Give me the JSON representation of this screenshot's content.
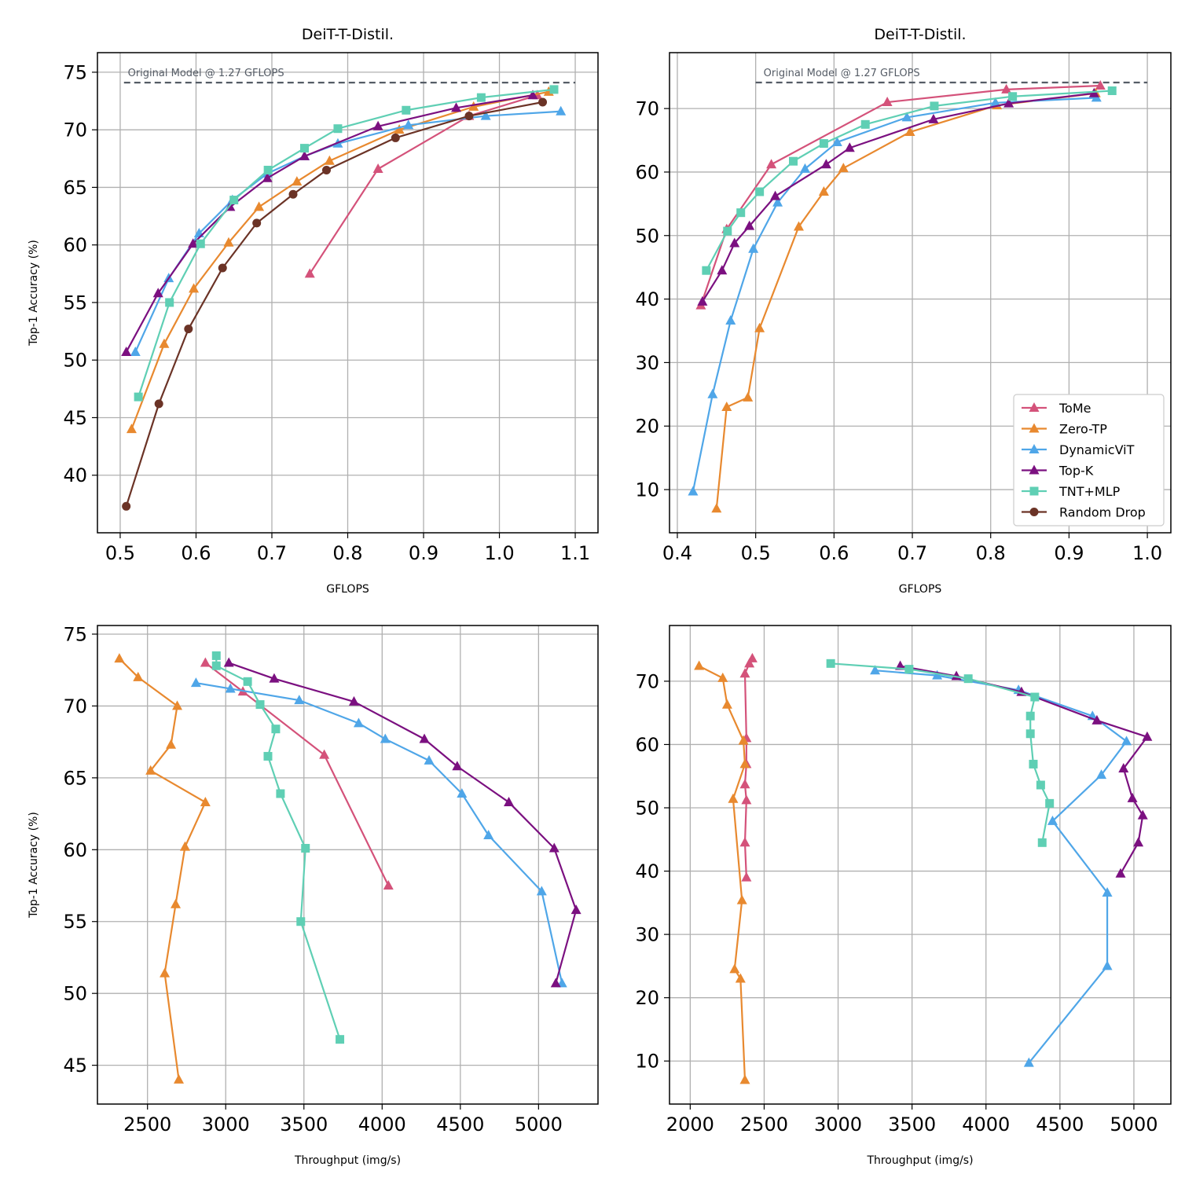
{
  "colors": {
    "ToMe": "#d4527a",
    "Zero-TP": "#e8892f",
    "DynamicViT": "#4fa6e8",
    "Top-K": "#7b1080",
    "TNT+MLP": "#5fcfb4",
    "Random Drop": "#6b3326",
    "grid": "#b0b0b0",
    "reference_line": "#555c66"
  },
  "legend": [
    {
      "name": "ToMe",
      "marker": "triangle"
    },
    {
      "name": "Zero-TP",
      "marker": "triangle"
    },
    {
      "name": "DynamicViT",
      "marker": "triangle"
    },
    {
      "name": "Top-K",
      "marker": "triangle"
    },
    {
      "name": "TNT+MLP",
      "marker": "square"
    },
    {
      "name": "Random Drop",
      "marker": "circle"
    }
  ],
  "chart_data": [
    {
      "type": "line",
      "title": "DeiT-T-Distil.",
      "xlabel": "GFLOPS",
      "ylabel": "Top-1 Accuracy (%)",
      "xlim": [
        0.47,
        1.13
      ],
      "ylim": [
        35,
        76.7
      ],
      "xticks": [
        "0.5",
        "0.6",
        "0.7",
        "0.8",
        "0.9",
        "1.0",
        "1.1"
      ],
      "yticks": [
        "40",
        "45",
        "50",
        "55",
        "60",
        "65",
        "70",
        "75"
      ],
      "reference": {
        "y": 74.1,
        "x": [
          0.505,
          1.1
        ],
        "label": "Original Model @ 1.27 GFLOPS",
        "label_x": 0.51
      },
      "series": [
        {
          "name": "ToMe",
          "x": [
            0.75,
            0.84,
            0.96,
            1.05
          ],
          "y": [
            57.5,
            66.6,
            71.2,
            73.0
          ]
        },
        {
          "name": "Zero-TP",
          "x": [
            0.515,
            0.558,
            0.597,
            0.643,
            0.683,
            0.733,
            0.776,
            0.868,
            0.966,
            1.065
          ],
          "y": [
            44.0,
            51.4,
            56.2,
            60.2,
            63.3,
            65.5,
            67.3,
            70.0,
            72.0,
            73.3
          ]
        },
        {
          "name": "DynamicViT",
          "x": [
            0.52,
            0.564,
            0.604,
            0.648,
            0.694,
            0.743,
            0.787,
            0.88,
            0.982,
            1.081
          ],
          "y": [
            50.7,
            57.1,
            61.0,
            63.9,
            66.2,
            67.7,
            68.8,
            70.4,
            71.2,
            71.6
          ]
        },
        {
          "name": "Top-K",
          "x": [
            0.508,
            0.55,
            0.596,
            0.645,
            0.694,
            0.743,
            0.84,
            0.943,
            1.044
          ],
          "y": [
            50.7,
            55.8,
            60.1,
            63.3,
            65.8,
            67.7,
            70.3,
            71.9,
            73.0
          ]
        },
        {
          "name": "TNT+MLP",
          "x": [
            0.524,
            0.565,
            0.606,
            0.65,
            0.695,
            0.743,
            0.787,
            0.877,
            0.976,
            1.072
          ],
          "y": [
            46.8,
            55.0,
            60.1,
            63.9,
            66.5,
            68.4,
            70.1,
            71.7,
            72.8,
            73.5
          ]
        },
        {
          "name": "Random Drop",
          "x": [
            0.508,
            0.551,
            0.59,
            0.635,
            0.68,
            0.728,
            0.772,
            0.863,
            0.96,
            1.057
          ],
          "y": [
            37.3,
            46.2,
            52.7,
            58.0,
            61.9,
            64.4,
            66.5,
            69.3,
            71.2,
            72.4
          ]
        }
      ]
    },
    {
      "type": "line",
      "title": "DeiT-T-Distil.",
      "xlabel": "GFLOPS",
      "ylabel": "",
      "xlim": [
        0.39,
        1.03
      ],
      "ylim": [
        3.2,
        78.8
      ],
      "xticks": [
        "0.4",
        "0.5",
        "0.6",
        "0.7",
        "0.8",
        "0.9",
        "1.0"
      ],
      "yticks": [
        "10",
        "20",
        "30",
        "40",
        "50",
        "60",
        "70"
      ],
      "reference": {
        "y": 74.1,
        "x": [
          0.5,
          1.0
        ],
        "label": "Original Model @ 1.27 GFLOPS",
        "label_x": 0.51
      },
      "legend_position": "lower-right",
      "series": [
        {
          "name": "ToMe",
          "x": [
            0.43,
            0.463,
            0.52,
            0.668,
            0.82,
            0.94
          ],
          "y": [
            39.0,
            51.0,
            61.2,
            71.0,
            73.0,
            73.6
          ]
        },
        {
          "name": "Zero-TP",
          "x": [
            0.45,
            0.463,
            0.49,
            0.505,
            0.555,
            0.587,
            0.612,
            0.697,
            0.808,
            0.934
          ],
          "y": [
            7.0,
            23.0,
            24.5,
            35.4,
            51.4,
            56.9,
            60.6,
            66.3,
            70.5,
            72.4
          ]
        },
        {
          "name": "DynamicViT",
          "x": [
            0.42,
            0.445,
            0.468,
            0.497,
            0.528,
            0.563,
            0.604,
            0.693,
            0.806,
            0.935
          ],
          "y": [
            9.7,
            25.0,
            36.6,
            47.9,
            55.2,
            60.5,
            64.7,
            68.6,
            70.9,
            71.7
          ]
        },
        {
          "name": "Top-K",
          "x": [
            0.432,
            0.457,
            0.473,
            0.492,
            0.525,
            0.59,
            0.62,
            0.727,
            0.823,
            0.932
          ],
          "y": [
            39.6,
            44.5,
            48.8,
            51.5,
            56.2,
            61.2,
            63.8,
            68.3,
            70.8,
            72.4
          ]
        },
        {
          "name": "TNT+MLP",
          "x": [
            0.437,
            0.464,
            0.481,
            0.505,
            0.548,
            0.587,
            0.64,
            0.728,
            0.828,
            0.955
          ],
          "y": [
            44.5,
            50.7,
            53.6,
            56.9,
            61.7,
            64.5,
            67.5,
            70.4,
            71.9,
            72.8
          ]
        }
      ]
    },
    {
      "type": "line",
      "title": "",
      "xlabel": "Throughput (img/s)",
      "ylabel": "Top-1 Accuracy (%)",
      "xlim": [
        2180,
        5380
      ],
      "ylim": [
        42.3,
        75.6
      ],
      "xticks": [
        "2500",
        "3000",
        "3500",
        "4000",
        "4500",
        "5000"
      ],
      "yticks": [
        "45",
        "50",
        "55",
        "60",
        "65",
        "70",
        "75"
      ],
      "series": [
        {
          "name": "ToMe",
          "x": [
            4040,
            3630,
            3110,
            2870
          ],
          "y": [
            57.5,
            66.6,
            71.0,
            73.0
          ]
        },
        {
          "name": "Zero-TP",
          "x": [
            2700,
            2610,
            2680,
            2740,
            2870,
            2520,
            2650,
            2690,
            2440,
            2320
          ],
          "y": [
            44.0,
            51.4,
            56.2,
            60.2,
            63.3,
            65.5,
            67.3,
            70.0,
            72.0,
            73.3
          ]
        },
        {
          "name": "DynamicViT",
          "x": [
            5150,
            5020,
            4680,
            4510,
            4300,
            4020,
            3850,
            3470,
            3030,
            2810
          ],
          "y": [
            50.7,
            57.1,
            61.0,
            63.9,
            66.2,
            67.7,
            68.8,
            70.4,
            71.2,
            71.6
          ]
        },
        {
          "name": "Top-K",
          "x": [
            5110,
            5240,
            5100,
            4810,
            4480,
            4270,
            3820,
            3310,
            3020
          ],
          "y": [
            50.7,
            55.8,
            60.1,
            63.3,
            65.8,
            67.7,
            70.3,
            71.9,
            73.0
          ]
        },
        {
          "name": "TNT+MLP",
          "x": [
            3730,
            3480,
            3510,
            3350,
            3270,
            3320,
            3220,
            3140,
            2940,
            2940
          ],
          "y": [
            46.8,
            55.0,
            60.1,
            63.9,
            66.5,
            68.4,
            70.1,
            71.7,
            72.8,
            73.5
          ]
        }
      ]
    },
    {
      "type": "line",
      "title": "",
      "xlabel": "Throughput (img/s)",
      "ylabel": "",
      "xlim": [
        1860,
        5250
      ],
      "ylim": [
        3.2,
        78.8
      ],
      "xticks": [
        "2000",
        "2500",
        "3000",
        "3500",
        "4000",
        "4500",
        "5000"
      ],
      "yticks": [
        "10",
        "20",
        "30",
        "40",
        "50",
        "60",
        "70"
      ],
      "series": [
        {
          "name": "ToMe",
          "x": [
            2380,
            2370,
            2380,
            2370,
            2380,
            2380,
            2370,
            2400,
            2420
          ],
          "y": [
            39.0,
            44.5,
            51.2,
            53.7,
            56.9,
            61.0,
            71.2,
            72.8,
            73.6
          ]
        },
        {
          "name": "Zero-TP",
          "x": [
            2370,
            2340,
            2300,
            2350,
            2290,
            2370,
            2360,
            2250,
            2220,
            2060
          ],
          "y": [
            7.0,
            23.0,
            24.5,
            35.4,
            51.4,
            56.9,
            60.6,
            66.3,
            70.5,
            72.4
          ]
        },
        {
          "name": "DynamicViT",
          "x": [
            4290,
            4820,
            4820,
            4450,
            4780,
            4950,
            4720,
            4220,
            3670,
            3250
          ],
          "y": [
            9.7,
            25.0,
            36.6,
            47.9,
            55.2,
            60.5,
            64.5,
            68.6,
            70.9,
            71.7
          ]
        },
        {
          "name": "Top-K",
          "x": [
            4910,
            5030,
            5060,
            4990,
            4930,
            5090,
            4750,
            4240,
            3800,
            3420
          ],
          "y": [
            39.6,
            44.5,
            48.8,
            51.5,
            56.2,
            61.2,
            63.8,
            68.3,
            70.8,
            72.4
          ]
        },
        {
          "name": "TNT+MLP",
          "x": [
            4380,
            4430,
            4370,
            4320,
            4300,
            4300,
            4330,
            3880,
            3480,
            2950
          ],
          "y": [
            44.5,
            50.7,
            53.6,
            56.9,
            61.7,
            64.5,
            67.5,
            70.4,
            71.9,
            72.8
          ]
        }
      ]
    }
  ]
}
